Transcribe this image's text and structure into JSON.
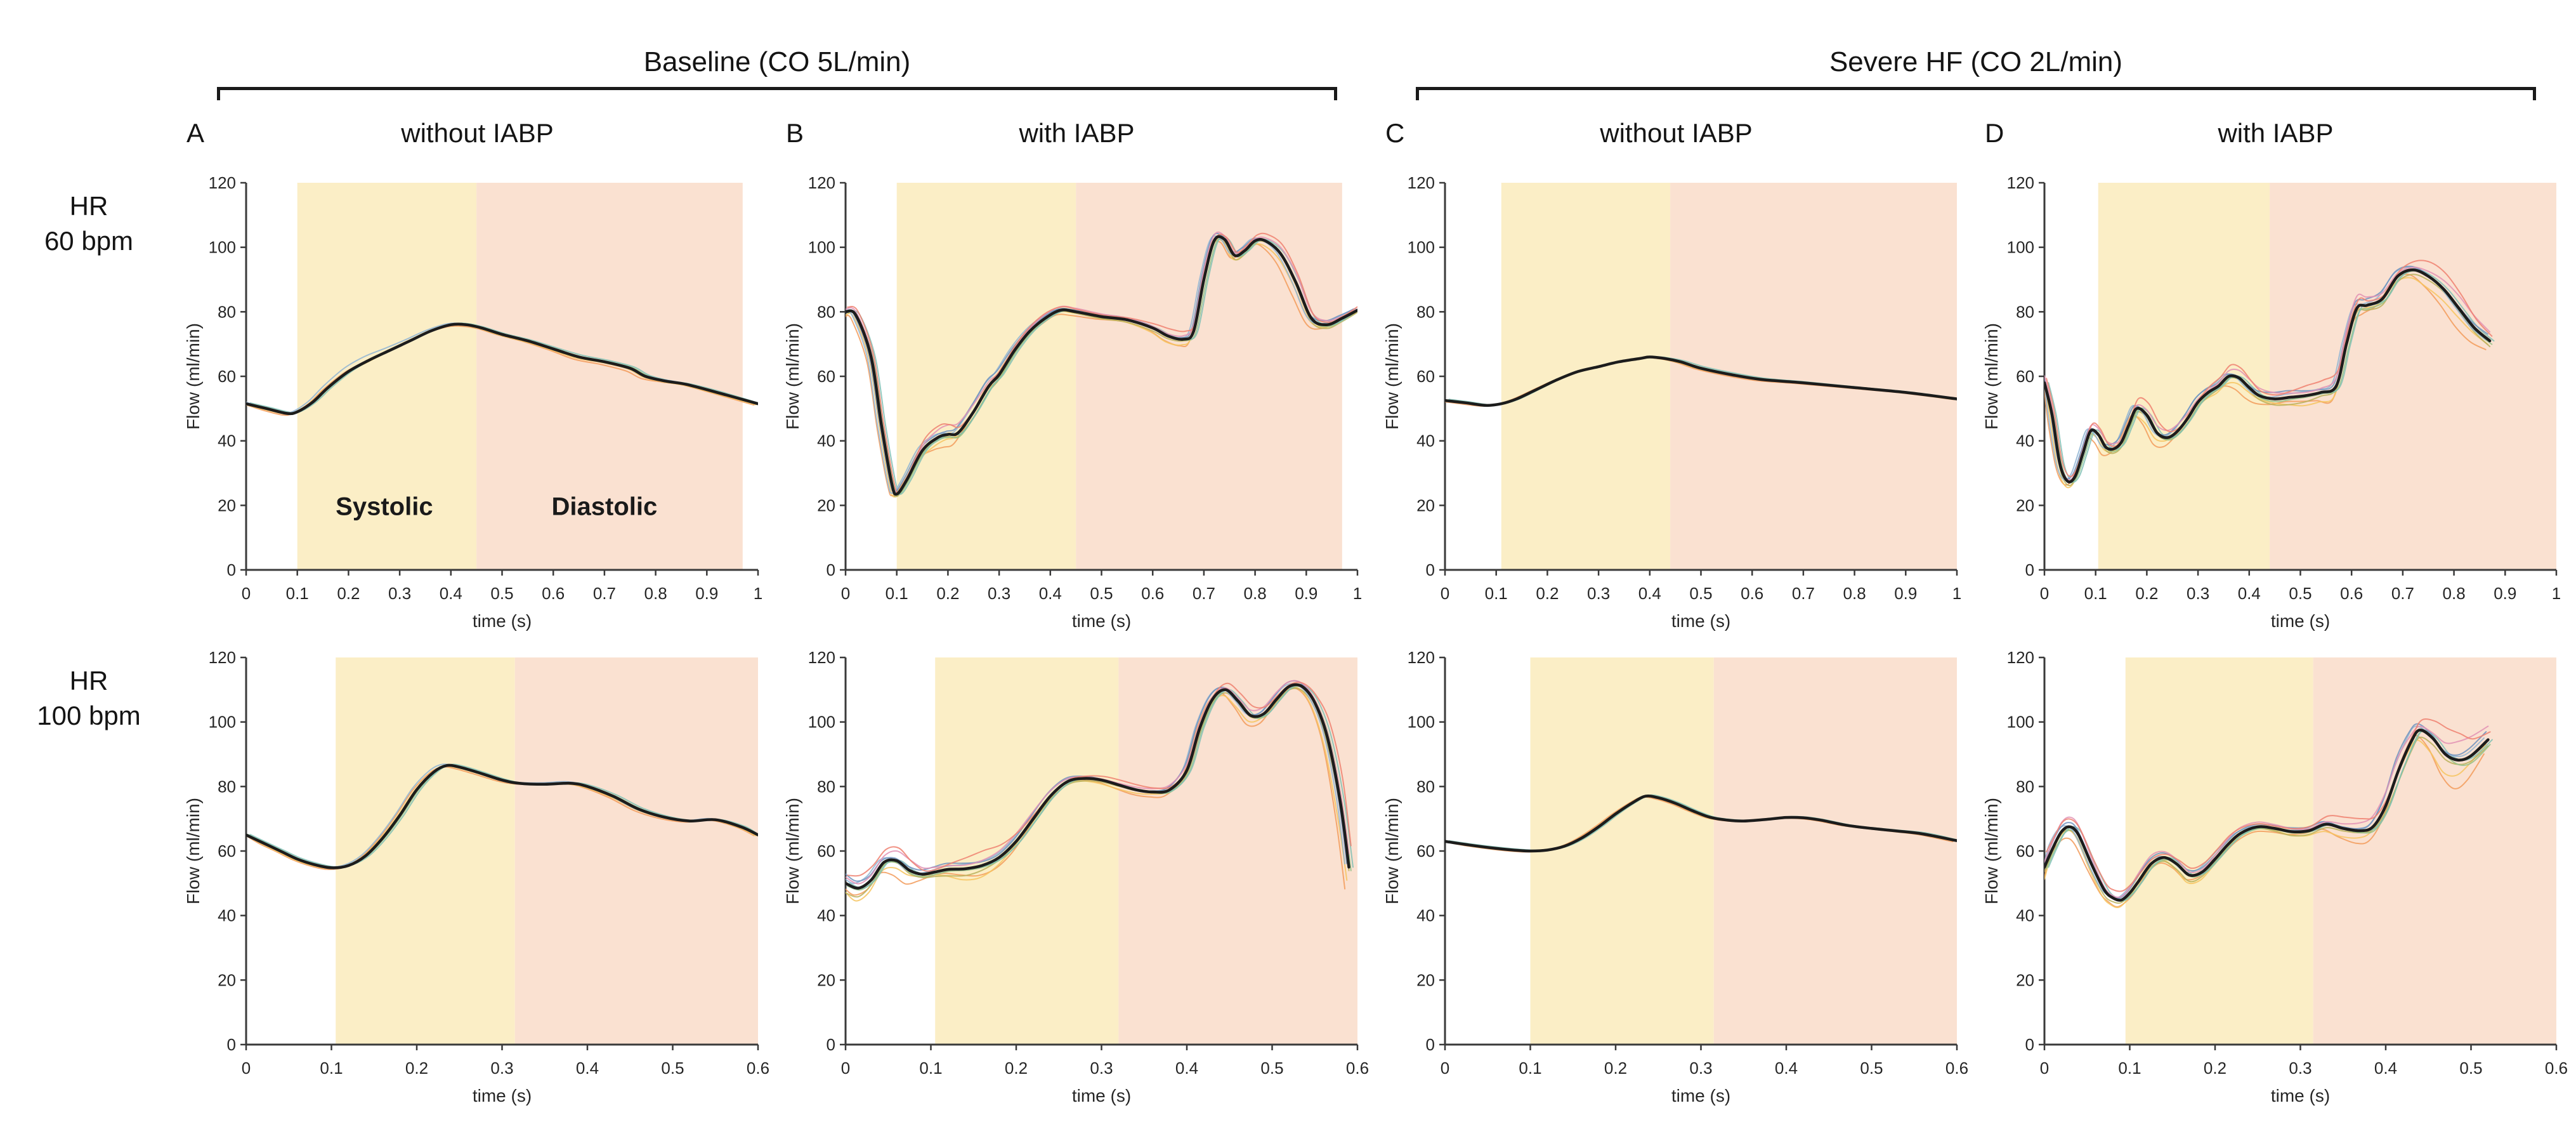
{
  "figure": {
    "groups": [
      {
        "title": "Baseline (CO 5L/min)"
      },
      {
        "title": "Severe HF (CO 2L/min)"
      }
    ],
    "columns": [
      {
        "letter": "A",
        "title": "without IABP"
      },
      {
        "letter": "B",
        "title": "with IABP"
      },
      {
        "letter": "C",
        "title": "without IABP"
      },
      {
        "letter": "D",
        "title": "with IABP"
      }
    ],
    "rows": [
      {
        "line1": "HR",
        "line2": "60 bpm"
      },
      {
        "line1": "HR",
        "line2": "100 bpm"
      }
    ],
    "colors": {
      "systolic_band": "#FBEEC6",
      "diastolic_band": "#FAE1D1",
      "mean_line": "#1c1c1c",
      "axis": "#3a3a3a",
      "tick_text": "#262626",
      "trace_palette": [
        "#F29B5B",
        "#F6C45F",
        "#B9B05A",
        "#93C188",
        "#7FC0B4",
        "#8FB4D4",
        "#6E92BE",
        "#E291B4",
        "#EF8070"
      ]
    }
  },
  "chart_data": [
    {
      "id": "A_hr60",
      "group": "Baseline (CO 5L/min)",
      "column": "without IABP",
      "row": "HR 60 bpm",
      "type": "line",
      "xlabel": "time (s)",
      "ylabel": "Flow (ml/min)",
      "xlim": [
        0,
        1
      ],
      "ylim": [
        0,
        120
      ],
      "xticks": [
        "0",
        "0.1",
        "0.2",
        "0.3",
        "0.4",
        "0.5",
        "0.6",
        "0.7",
        "0.8",
        "0.9",
        "1"
      ],
      "yticks": [
        "0",
        "20",
        "40",
        "60",
        "80",
        "100",
        "120"
      ],
      "systolic_band": [
        0.1,
        0.45
      ],
      "diastolic_band": [
        0.45,
        0.97
      ],
      "annotations": [
        {
          "text": "Systolic",
          "x": 0.27,
          "y": 17
        },
        {
          "text": "Diastolic",
          "x": 0.7,
          "y": 17
        }
      ],
      "n_traces": 6,
      "x": [
        0,
        0.04,
        0.08,
        0.1,
        0.13,
        0.16,
        0.2,
        0.24,
        0.28,
        0.32,
        0.36,
        0.4,
        0.43,
        0.46,
        0.5,
        0.55,
        0.6,
        0.65,
        0.7,
        0.75,
        0.78,
        0.82,
        0.86,
        0.92,
        1.0
      ],
      "mean": [
        51.5,
        50,
        48.5,
        49,
        52,
        56.5,
        61.5,
        65,
        68,
        71,
        74,
        76,
        76,
        75,
        73,
        71,
        68.5,
        66,
        64.5,
        62.5,
        60,
        58.5,
        57.5,
        55,
        51.5
      ],
      "spread": [
        0.5,
        0.5,
        0.5,
        0.5,
        0.8,
        1.0,
        1.2,
        1.2,
        0.8,
        0.6,
        0.6,
        0.8,
        0.8,
        0.6,
        0.5,
        0.5,
        0.5,
        0.8,
        0.8,
        1.0,
        1.2,
        0.8,
        0.5,
        0.5,
        0.5
      ]
    },
    {
      "id": "B_hr60",
      "group": "Baseline (CO 5L/min)",
      "column": "with IABP",
      "row": "HR 60 bpm",
      "type": "line",
      "xlabel": "time (s)",
      "ylabel": "Flow (ml/min)",
      "xlim": [
        0,
        1
      ],
      "ylim": [
        0,
        120
      ],
      "xticks": [
        "0",
        "0.1",
        "0.2",
        "0.3",
        "0.4",
        "0.5",
        "0.6",
        "0.7",
        "0.8",
        "0.9",
        "1"
      ],
      "yticks": [
        "0",
        "20",
        "40",
        "60",
        "80",
        "100",
        "120"
      ],
      "systolic_band": [
        0.1,
        0.45
      ],
      "diastolic_band": [
        0.45,
        0.97
      ],
      "annotations": [],
      "n_traces": 9,
      "x": [
        0,
        0.02,
        0.05,
        0.07,
        0.09,
        0.1,
        0.12,
        0.15,
        0.18,
        0.2,
        0.22,
        0.25,
        0.28,
        0.3,
        0.33,
        0.36,
        0.39,
        0.42,
        0.45,
        0.5,
        0.55,
        0.6,
        0.63,
        0.66,
        0.68,
        0.7,
        0.72,
        0.74,
        0.76,
        0.78,
        0.8,
        0.82,
        0.85,
        0.88,
        0.91,
        0.94,
        0.97,
        1.0
      ],
      "mean": [
        80,
        79,
        66,
        45,
        27,
        23.5,
        28,
        37,
        41,
        42,
        42.5,
        49,
        57,
        60.5,
        68,
        74,
        78,
        80.5,
        80,
        78.5,
        77.5,
        75,
        72.5,
        71.5,
        74,
        90,
        102,
        102.5,
        97.5,
        99,
        102,
        102,
        98,
        89,
        78,
        76,
        78,
        80.5
      ],
      "spread": [
        1.5,
        1.5,
        2,
        2.5,
        2,
        1.5,
        2.5,
        3.5,
        4,
        4,
        4,
        4,
        3.5,
        3,
        2.5,
        2,
        2,
        1.5,
        1.5,
        1.5,
        1.5,
        2,
        2.5,
        2.5,
        3,
        4,
        2.5,
        2,
        2.5,
        2.5,
        2,
        2,
        3,
        4,
        3,
        2.5,
        2,
        1.5
      ]
    },
    {
      "id": "C_hr60",
      "group": "Severe HF (CO 2L/min)",
      "column": "without IABP",
      "row": "HR 60 bpm",
      "type": "line",
      "xlabel": "time (s)",
      "ylabel": "Flow (ml/min)",
      "xlim": [
        0,
        1
      ],
      "ylim": [
        0,
        120
      ],
      "xticks": [
        "0",
        "0.1",
        "0.2",
        "0.3",
        "0.4",
        "0.5",
        "0.6",
        "0.7",
        "0.8",
        "0.9",
        "1"
      ],
      "yticks": [
        "0",
        "20",
        "40",
        "60",
        "80",
        "100",
        "120"
      ],
      "systolic_band": [
        0.11,
        0.44
      ],
      "diastolic_band": [
        0.44,
        1.0
      ],
      "annotations": [],
      "n_traces": 5,
      "x": [
        0,
        0.04,
        0.08,
        0.11,
        0.14,
        0.18,
        0.22,
        0.26,
        0.3,
        0.34,
        0.38,
        0.4,
        0.43,
        0.46,
        0.5,
        0.56,
        0.62,
        0.7,
        0.8,
        0.9,
        1.0
      ],
      "mean": [
        52.5,
        51.8,
        51,
        51.5,
        53,
        56,
        59,
        61.5,
        63,
        64.5,
        65.5,
        66,
        65.5,
        64.5,
        62.5,
        60.5,
        59,
        58,
        56.5,
        55,
        53
      ],
      "spread": [
        0.4,
        0.4,
        0.4,
        0.4,
        0.4,
        0.4,
        0.4,
        0.4,
        0.4,
        0.4,
        0.4,
        0.4,
        0.4,
        0.4,
        0.4,
        0.4,
        0.4,
        0.4,
        0.4,
        0.4,
        0.4
      ]
    },
    {
      "id": "D_hr60",
      "group": "Severe HF (CO 2L/min)",
      "column": "with IABP",
      "row": "HR 60 bpm",
      "type": "line",
      "xlabel": "time (s)",
      "ylabel": "Flow (ml/min)",
      "xlim": [
        0,
        1
      ],
      "ylim": [
        0,
        120
      ],
      "xticks": [
        "0",
        "0.1",
        "0.2",
        "0.3",
        "0.4",
        "0.5",
        "0.6",
        "0.7",
        "0.8",
        "0.9",
        "1"
      ],
      "yticks": [
        "0",
        "20",
        "40",
        "60",
        "80",
        "100",
        "120"
      ],
      "systolic_band": [
        0.105,
        0.44
      ],
      "diastolic_band": [
        0.44,
        1.0
      ],
      "annotations": [],
      "n_traces": 9,
      "x": [
        0,
        0.015,
        0.03,
        0.045,
        0.06,
        0.075,
        0.09,
        0.105,
        0.12,
        0.135,
        0.15,
        0.165,
        0.18,
        0.2,
        0.22,
        0.24,
        0.26,
        0.28,
        0.3,
        0.32,
        0.34,
        0.36,
        0.38,
        0.4,
        0.42,
        0.45,
        0.48,
        0.51,
        0.54,
        0.57,
        0.59,
        0.61,
        0.63,
        0.66,
        0.69,
        0.72,
        0.75,
        0.78,
        0.81,
        0.84,
        0.87
      ],
      "mean": [
        58,
        48,
        33,
        27.5,
        29,
        36,
        43,
        42,
        38,
        37.5,
        39.5,
        45,
        50,
        48,
        42.5,
        41,
        43,
        47,
        52,
        55,
        57,
        60,
        59.5,
        56.5,
        54,
        53,
        53.5,
        54,
        55,
        57,
        70,
        81,
        82,
        84,
        91,
        93,
        91,
        87,
        81,
        75,
        71
      ],
      "spread": [
        3,
        4,
        3,
        2.5,
        3,
        3,
        2.5,
        2.5,
        3,
        3,
        3,
        3.5,
        3.5,
        3.5,
        3.5,
        3,
        3,
        3,
        3,
        3,
        3,
        3.5,
        3.5,
        3.5,
        3.5,
        4,
        4.5,
        4.5,
        4,
        5,
        6,
        5,
        4,
        4,
        3.5,
        3.5,
        4.5,
        5,
        5.5,
        5,
        4.5
      ]
    },
    {
      "id": "A_hr100",
      "group": "Baseline (CO 5L/min)",
      "column": "without IABP",
      "row": "HR 100 bpm",
      "type": "line",
      "xlabel": "time (s)",
      "ylabel": "Flow (ml/min)",
      "xlim": [
        0,
        0.6
      ],
      "ylim": [
        0,
        120
      ],
      "xticks": [
        "0",
        "0.1",
        "0.2",
        "0.3",
        "0.4",
        "0.5",
        "0.6"
      ],
      "yticks": [
        "0",
        "20",
        "40",
        "60",
        "80",
        "100",
        "120"
      ],
      "systolic_band": [
        0.105,
        0.315
      ],
      "diastolic_band": [
        0.315,
        0.6
      ],
      "annotations": [],
      "n_traces": 6,
      "x": [
        0,
        0.02,
        0.04,
        0.06,
        0.08,
        0.1,
        0.12,
        0.14,
        0.16,
        0.18,
        0.2,
        0.22,
        0.235,
        0.25,
        0.27,
        0.3,
        0.32,
        0.35,
        0.38,
        0.4,
        0.43,
        0.46,
        0.49,
        0.52,
        0.55,
        0.58,
        0.6
      ],
      "mean": [
        65,
        62.5,
        60,
        57.5,
        55.8,
        54.8,
        55.5,
        58.5,
        64,
        71,
        79,
        84.5,
        86.5,
        86,
        84.5,
        82,
        81,
        80.7,
        81,
        80,
        77,
        73,
        70.5,
        69.3,
        69.7,
        67.5,
        65
      ],
      "spread": [
        0.5,
        0.5,
        0.5,
        0.5,
        0.5,
        0.5,
        0.5,
        0.5,
        0.5,
        0.5,
        0.5,
        0.5,
        0.5,
        0.5,
        0.5,
        0.5,
        0.5,
        0.5,
        0.5,
        0.5,
        0.5,
        0.5,
        0.5,
        0.5,
        0.5,
        0.5,
        0.5
      ]
    },
    {
      "id": "B_hr100",
      "group": "Baseline (CO 5L/min)",
      "column": "with IABP",
      "row": "HR 100 bpm",
      "type": "line",
      "xlabel": "time (s)",
      "ylabel": "Flow (ml/min)",
      "xlim": [
        0,
        0.6
      ],
      "ylim": [
        0,
        120
      ],
      "xticks": [
        "0",
        "0.1",
        "0.2",
        "0.3",
        "0.4",
        "0.5",
        "0.6"
      ],
      "yticks": [
        "0",
        "20",
        "40",
        "60",
        "80",
        "100",
        "120"
      ],
      "systolic_band": [
        0.105,
        0.32
      ],
      "diastolic_band": [
        0.32,
        0.6
      ],
      "annotations": [],
      "n_traces": 9,
      "x": [
        0,
        0.015,
        0.03,
        0.045,
        0.06,
        0.075,
        0.09,
        0.105,
        0.12,
        0.14,
        0.16,
        0.18,
        0.2,
        0.22,
        0.24,
        0.26,
        0.28,
        0.3,
        0.32,
        0.34,
        0.36,
        0.38,
        0.4,
        0.415,
        0.43,
        0.445,
        0.46,
        0.475,
        0.49,
        0.505,
        0.52,
        0.535,
        0.55,
        0.565,
        0.58,
        0.59
      ],
      "mean": [
        50,
        48.5,
        51,
        56.5,
        57,
        54,
        52.8,
        53.5,
        54.3,
        54.5,
        55.5,
        58,
        63,
        70,
        77,
        81.5,
        82.5,
        82,
        80.5,
        79,
        78.3,
        79,
        85,
        98,
        107,
        110,
        106.5,
        102,
        102.5,
        107,
        111,
        111,
        106,
        95,
        75,
        55
      ],
      "spread": [
        6,
        6,
        5,
        4,
        4.5,
        4.5,
        3,
        3,
        4,
        5,
        5,
        4,
        3.5,
        3,
        2.5,
        2,
        1.5,
        1.5,
        1.5,
        1.5,
        1.5,
        2,
        3,
        3.5,
        3,
        2.5,
        2.5,
        3,
        3,
        3,
        2.5,
        2.5,
        3.5,
        6,
        8,
        7
      ]
    },
    {
      "id": "C_hr100",
      "group": "Severe HF (CO 2L/min)",
      "column": "without IABP",
      "row": "HR 100 bpm",
      "type": "line",
      "xlabel": "time (s)",
      "ylabel": "Flow (ml/min)",
      "xlim": [
        0,
        0.6
      ],
      "ylim": [
        0,
        120
      ],
      "xticks": [
        "0",
        "0.1",
        "0.2",
        "0.3",
        "0.4",
        "0.5",
        "0.6"
      ],
      "yticks": [
        "0",
        "20",
        "40",
        "60",
        "80",
        "100",
        "120"
      ],
      "systolic_band": [
        0.1,
        0.315
      ],
      "diastolic_band": [
        0.315,
        0.6
      ],
      "annotations": [],
      "n_traces": 5,
      "x": [
        0,
        0.03,
        0.06,
        0.08,
        0.1,
        0.12,
        0.14,
        0.16,
        0.18,
        0.2,
        0.22,
        0.235,
        0.25,
        0.27,
        0.29,
        0.31,
        0.33,
        0.35,
        0.38,
        0.4,
        0.42,
        0.44,
        0.47,
        0.5,
        0.53,
        0.56,
        0.6
      ],
      "mean": [
        63,
        61.8,
        60.8,
        60.3,
        60,
        60.3,
        61.5,
        64,
        67.5,
        71.5,
        75,
        77,
        76.5,
        74.8,
        72.5,
        70.5,
        69.6,
        69.3,
        69.9,
        70.4,
        70.3,
        69.6,
        68,
        67,
        66.2,
        65.3,
        63.2
      ],
      "spread": [
        0.3,
        0.3,
        0.3,
        0.3,
        0.3,
        0.3,
        0.3,
        0.3,
        0.3,
        0.3,
        0.3,
        0.3,
        0.3,
        0.3,
        0.3,
        0.3,
        0.3,
        0.3,
        0.3,
        0.3,
        0.3,
        0.3,
        0.3,
        0.3,
        0.3,
        0.3,
        0.3
      ]
    },
    {
      "id": "D_hr100",
      "group": "Severe HF (CO 2L/min)",
      "column": "with IABP",
      "row": "HR 100 bpm",
      "type": "line",
      "xlabel": "time (s)",
      "ylabel": "Flow (ml/min)",
      "xlim": [
        0,
        0.6
      ],
      "ylim": [
        0,
        120
      ],
      "xticks": [
        "0",
        "0.1",
        "0.2",
        "0.3",
        "0.4",
        "0.5",
        "0.6"
      ],
      "yticks": [
        "0",
        "20",
        "40",
        "60",
        "80",
        "100",
        "120"
      ],
      "systolic_band": [
        0.095,
        0.315
      ],
      "diastolic_band": [
        0.315,
        0.6
      ],
      "annotations": [],
      "n_traces": 9,
      "x": [
        0,
        0.01,
        0.02,
        0.03,
        0.04,
        0.055,
        0.07,
        0.08,
        0.09,
        0.1,
        0.11,
        0.125,
        0.14,
        0.155,
        0.17,
        0.185,
        0.2,
        0.215,
        0.23,
        0.25,
        0.27,
        0.29,
        0.31,
        0.33,
        0.35,
        0.37,
        0.385,
        0.4,
        0.415,
        0.43,
        0.44,
        0.455,
        0.47,
        0.485,
        0.5,
        0.52
      ],
      "mean": [
        55,
        61,
        66,
        67.5,
        65,
        56,
        48,
        45.5,
        44.8,
        47,
        50.5,
        56,
        58,
        56,
        52.5,
        53.5,
        57.5,
        62,
        65.5,
        67.5,
        67,
        66,
        66.3,
        68.3,
        67,
        66.3,
        67.5,
        74,
        85,
        94,
        97.5,
        95,
        90,
        88.2,
        89.5,
        94.5
      ],
      "spread": [
        5,
        4,
        4,
        4,
        4.5,
        4.5,
        3.5,
        3,
        3,
        3,
        3.5,
        3.5,
        3,
        3.5,
        4,
        3.5,
        3,
        3,
        2.5,
        2,
        2,
        2.5,
        2.5,
        3,
        3.5,
        4,
        4.5,
        6,
        8,
        6,
        5,
        6,
        8,
        9,
        8,
        6
      ]
    }
  ]
}
